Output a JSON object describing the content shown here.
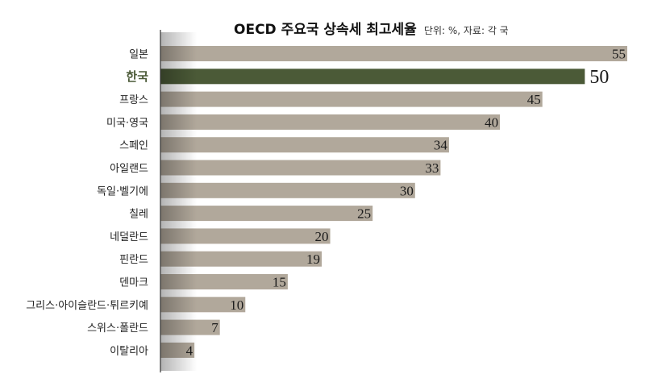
{
  "chart_data": {
    "type": "bar",
    "orientation": "horizontal",
    "title": "OECD 주요국 상속세 최고세율",
    "subtitle": "단위: %, 자료: 각 국",
    "categories": [
      "일본",
      "한국",
      "프랑스",
      "미국·영국",
      "스페인",
      "아일랜드",
      "독일·벨기에",
      "칠레",
      "네덜란드",
      "핀란드",
      "덴마크",
      "그리스·아이슬란드·튀르키예",
      "스위스·폴란드",
      "이탈리아"
    ],
    "values": [
      55,
      50,
      45,
      40,
      34,
      33,
      30,
      25,
      20,
      19,
      15,
      10,
      7,
      4
    ],
    "highlight": "한국",
    "xlim": [
      0,
      55
    ],
    "grid": false,
    "colors": {
      "bar": "#b1a89b",
      "highlight_bar": "#4b5a37",
      "highlight_label": "#4b5a37",
      "label": "#222222",
      "axis": "#333333"
    }
  }
}
